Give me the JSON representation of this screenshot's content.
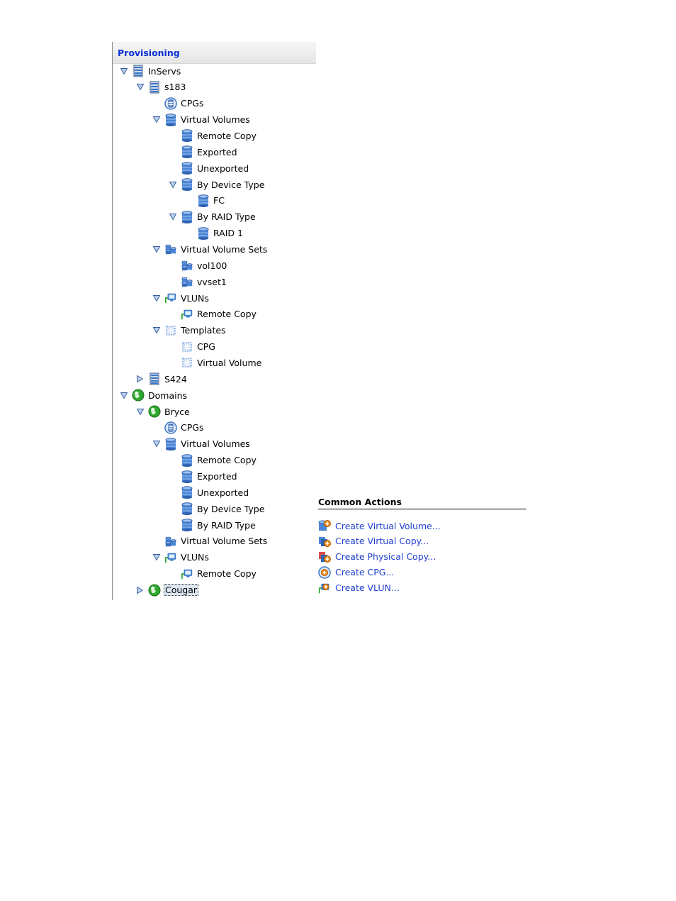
{
  "panel": {
    "title": "Provisioning"
  },
  "tree": [
    {
      "label": "InServs",
      "level": 0,
      "expander": "open",
      "icon": "server-icon"
    },
    {
      "label": "s183",
      "level": 1,
      "expander": "open",
      "icon": "server-icon"
    },
    {
      "label": "CPGs",
      "level": 2,
      "expander": "none",
      "icon": "cpg-icon"
    },
    {
      "label": "Virtual Volumes",
      "level": 2,
      "expander": "open",
      "icon": "volume-icon"
    },
    {
      "label": "Remote Copy",
      "level": 3,
      "expander": "none",
      "icon": "volume-icon"
    },
    {
      "label": "Exported",
      "level": 3,
      "expander": "none",
      "icon": "volume-icon"
    },
    {
      "label": "Unexported",
      "level": 3,
      "expander": "none",
      "icon": "volume-icon"
    },
    {
      "label": "By Device Type",
      "level": 3,
      "expander": "open",
      "icon": "volume-icon"
    },
    {
      "label": "FC",
      "level": 4,
      "expander": "none",
      "icon": "volume-icon"
    },
    {
      "label": "By RAID Type",
      "level": 3,
      "expander": "open",
      "icon": "volume-icon"
    },
    {
      "label": "RAID 1",
      "level": 4,
      "expander": "none",
      "icon": "volume-icon"
    },
    {
      "label": "Virtual Volume Sets",
      "level": 2,
      "expander": "open",
      "icon": "volume-set-icon"
    },
    {
      "label": "vol100",
      "level": 3,
      "expander": "none",
      "icon": "volume-set-icon"
    },
    {
      "label": "vvset1",
      "level": 3,
      "expander": "none",
      "icon": "volume-set-icon"
    },
    {
      "label": "VLUNs",
      "level": 2,
      "expander": "open",
      "icon": "vlun-icon"
    },
    {
      "label": "Remote Copy",
      "level": 3,
      "expander": "none",
      "icon": "vlun-icon"
    },
    {
      "label": "Templates",
      "level": 2,
      "expander": "open",
      "icon": "template-icon"
    },
    {
      "label": "CPG",
      "level": 3,
      "expander": "none",
      "icon": "template-icon"
    },
    {
      "label": "Virtual Volume",
      "level": 3,
      "expander": "none",
      "icon": "template-icon"
    },
    {
      "label": "S424",
      "level": 1,
      "expander": "closed",
      "icon": "server-icon"
    },
    {
      "label": "Domains",
      "level": 0,
      "expander": "open",
      "icon": "domain-icon"
    },
    {
      "label": "Bryce",
      "level": 1,
      "expander": "open",
      "icon": "domain-icon"
    },
    {
      "label": "CPGs",
      "level": 2,
      "expander": "none",
      "icon": "cpg-icon"
    },
    {
      "label": "Virtual Volumes",
      "level": 2,
      "expander": "open",
      "icon": "volume-icon"
    },
    {
      "label": "Remote Copy",
      "level": 3,
      "expander": "none",
      "icon": "volume-icon"
    },
    {
      "label": "Exported",
      "level": 3,
      "expander": "none",
      "icon": "volume-icon"
    },
    {
      "label": "Unexported",
      "level": 3,
      "expander": "none",
      "icon": "volume-icon"
    },
    {
      "label": "By Device Type",
      "level": 3,
      "expander": "none",
      "icon": "volume-icon"
    },
    {
      "label": "By RAID Type",
      "level": 3,
      "expander": "none",
      "icon": "volume-icon"
    },
    {
      "label": "Virtual Volume Sets",
      "level": 2,
      "expander": "none",
      "icon": "volume-set-icon"
    },
    {
      "label": "VLUNs",
      "level": 2,
      "expander": "open",
      "icon": "vlun-icon"
    },
    {
      "label": "Remote Copy",
      "level": 3,
      "expander": "none",
      "icon": "vlun-icon"
    },
    {
      "label": "Cougar",
      "level": 1,
      "expander": "closed",
      "icon": "domain-icon",
      "selected": true
    }
  ],
  "common_actions": {
    "title": "Common Actions",
    "items": [
      {
        "label": "Create Virtual Volume...",
        "icon": "create-volume-icon"
      },
      {
        "label": "Create Virtual Copy...",
        "icon": "create-virtual-copy-icon"
      },
      {
        "label": "Create Physical Copy...",
        "icon": "create-physical-copy-icon"
      },
      {
        "label": "Create CPG...",
        "icon": "create-cpg-icon"
      },
      {
        "label": "Create VLUN...",
        "icon": "create-vlun-icon"
      }
    ]
  },
  "colors": {
    "link": "#1f3fd0",
    "title": "#0b2fd6",
    "domain_green": "#2ea82e",
    "icon_blue": "#3a78c8"
  }
}
